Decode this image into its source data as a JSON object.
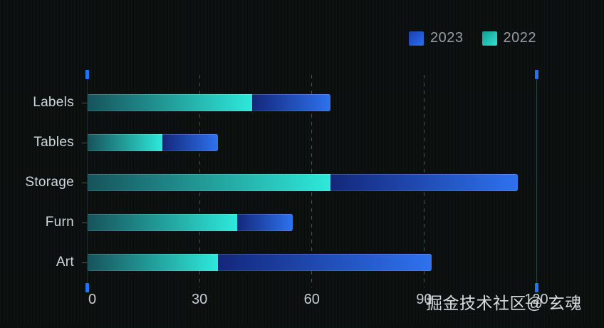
{
  "watermark": "掘金技术社区@ 玄魂",
  "legend": {
    "items": [
      {
        "label": "2023",
        "color_start": "#1b3fae",
        "color_end": "#2a6df5"
      },
      {
        "label": "2022",
        "color_start": "#149a90",
        "color_end": "#2fe4d3"
      }
    ]
  },
  "colors": {
    "background": "#0a0d0c",
    "axis_cap": "#2472f5",
    "grid_dash": "#49514f",
    "left_axis": "#1d302c",
    "right_axis": "#2a453f",
    "tick_label": "#c8cdd1",
    "category_label": "#d2d7da",
    "legend_text": "#969ca2",
    "watermark_text": "#d9dcdf"
  },
  "chart_data": {
    "type": "bar",
    "orientation": "horizontal",
    "stacked": true,
    "title": "",
    "xlabel": "",
    "ylabel": "",
    "categories": [
      "Labels",
      "Tables",
      "Storage",
      "Furn",
      "Art"
    ],
    "series": [
      {
        "name": "2022",
        "values": [
          44,
          20,
          65,
          40,
          35
        ],
        "color_start": "#16535a",
        "color_end": "#2ee9da"
      },
      {
        "name": "2023",
        "values": [
          21,
          15,
          50,
          15,
          57
        ],
        "color_start": "#13277b",
        "color_end": "#2e72ef"
      }
    ],
    "stack_totals": [
      65,
      35,
      115,
      55,
      92
    ],
    "x_ticks": [
      0,
      30,
      60,
      90,
      120
    ],
    "x_tick_labels": [
      "0",
      "30",
      "60",
      "90",
      "120"
    ],
    "xlim": [
      0,
      120
    ],
    "grid": "dashed vertical gridlines at 30, 60, 90; solid axis lines at 0 and 120 with blue end caps",
    "legend_position": "top-right",
    "legend_order": [
      "2023",
      "2022"
    ]
  }
}
